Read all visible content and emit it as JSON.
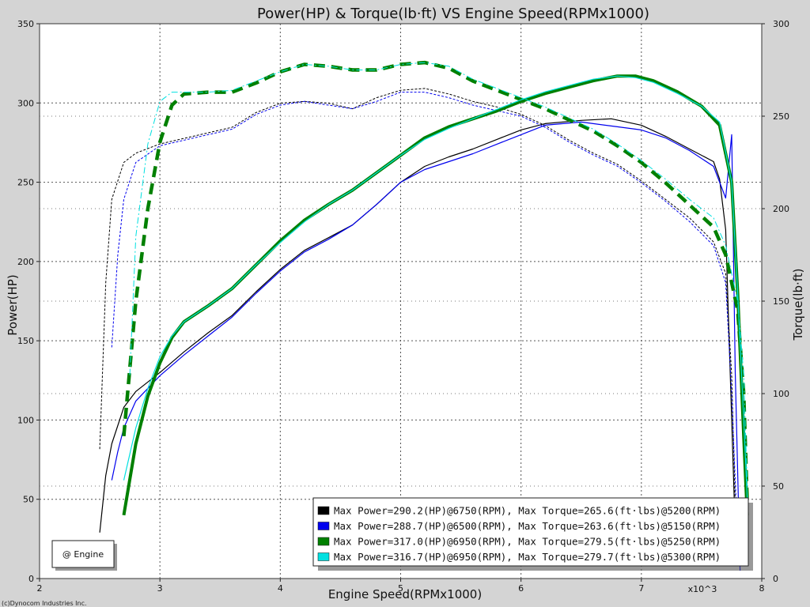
{
  "chart_data": {
    "type": "line",
    "title": "Power(HP) & Torque(lb·ft) VS Engine Speed(RPMx1000)",
    "xlabel": "Engine Speed(RPMx1000)",
    "ylabel_left": "Power(HP)",
    "ylabel_right": "Torque(lb·ft)",
    "x_multiplier_label": "x10^3",
    "xlim": [
      2,
      8
    ],
    "ylim_left": [
      0,
      350
    ],
    "ylim_right": [
      0,
      300
    ],
    "x_ticks": [
      2,
      3,
      4,
      5,
      6,
      7,
      8
    ],
    "y_ticks_left": [
      0,
      50,
      100,
      150,
      200,
      250,
      300,
      350
    ],
    "y_ticks_right": [
      0,
      50,
      100,
      150,
      200,
      250,
      300
    ],
    "grid": true,
    "legend_position": "bottom-right",
    "series": [
      {
        "color": "#000000",
        "legend": "Max Power=290.2(HP)@6750(RPM), Max Torque=265.6(ft·lbs)@5200(RPM)",
        "power": [
          [
            2.5,
            29
          ],
          [
            2.55,
            65
          ],
          [
            2.6,
            85
          ],
          [
            2.7,
            108
          ],
          [
            2.8,
            118
          ],
          [
            3,
            130
          ],
          [
            3.2,
            143
          ],
          [
            3.4,
            155
          ],
          [
            3.6,
            166
          ],
          [
            3.8,
            181
          ],
          [
            4,
            195
          ],
          [
            4.2,
            207
          ],
          [
            4.4,
            215
          ],
          [
            4.6,
            223
          ],
          [
            4.8,
            236
          ],
          [
            5,
            250
          ],
          [
            5.2,
            260
          ],
          [
            5.4,
            266
          ],
          [
            5.6,
            271
          ],
          [
            5.8,
            277
          ],
          [
            6,
            283
          ],
          [
            6.2,
            287
          ],
          [
            6.5,
            289
          ],
          [
            6.75,
            290
          ],
          [
            7,
            286
          ],
          [
            7.2,
            279
          ],
          [
            7.4,
            271
          ],
          [
            7.6,
            263
          ],
          [
            7.65,
            252
          ],
          [
            7.7,
            220
          ],
          [
            7.75,
            100
          ],
          [
            7.78,
            30
          ]
        ],
        "torque": [
          [
            2.5,
            70
          ],
          [
            2.55,
            160
          ],
          [
            2.6,
            205
          ],
          [
            2.7,
            225
          ],
          [
            2.8,
            230
          ],
          [
            3,
            235
          ],
          [
            3.2,
            238
          ],
          [
            3.4,
            241
          ],
          [
            3.6,
            244
          ],
          [
            3.8,
            252
          ],
          [
            4,
            257
          ],
          [
            4.2,
            258
          ],
          [
            4.4,
            257
          ],
          [
            4.6,
            254
          ],
          [
            4.8,
            260
          ],
          [
            5,
            264
          ],
          [
            5.2,
            265
          ],
          [
            5.4,
            262
          ],
          [
            5.6,
            258
          ],
          [
            5.8,
            255
          ],
          [
            6,
            251
          ],
          [
            6.2,
            245
          ],
          [
            6.4,
            237
          ],
          [
            6.6,
            230
          ],
          [
            6.8,
            224
          ],
          [
            7,
            215
          ],
          [
            7.2,
            205
          ],
          [
            7.4,
            195
          ],
          [
            7.6,
            182
          ],
          [
            7.7,
            165
          ],
          [
            7.75,
            110
          ],
          [
            7.78,
            40
          ]
        ]
      },
      {
        "color": "#0000ee",
        "legend": "Max Power=288.7(HP)@6500(RPM), Max Torque=263.6(ft·lbs)@5150(RPM)",
        "power": [
          [
            2.6,
            62
          ],
          [
            2.65,
            80
          ],
          [
            2.7,
            95
          ],
          [
            2.8,
            112
          ],
          [
            3,
            128
          ],
          [
            3.2,
            141
          ],
          [
            3.4,
            153
          ],
          [
            3.6,
            165
          ],
          [
            3.8,
            180
          ],
          [
            4,
            194
          ],
          [
            4.2,
            206
          ],
          [
            4.4,
            214
          ],
          [
            4.6,
            223
          ],
          [
            4.8,
            236
          ],
          [
            5,
            250
          ],
          [
            5.2,
            258
          ],
          [
            5.4,
            263
          ],
          [
            5.6,
            268
          ],
          [
            5.8,
            274
          ],
          [
            6,
            280
          ],
          [
            6.2,
            286
          ],
          [
            6.5,
            288
          ],
          [
            6.8,
            285
          ],
          [
            7,
            283
          ],
          [
            7.2,
            278
          ],
          [
            7.4,
            270
          ],
          [
            7.6,
            260
          ],
          [
            7.7,
            240
          ],
          [
            7.75,
            280
          ],
          [
            7.78,
            130
          ],
          [
            7.82,
            5
          ]
        ],
        "torque": [
          [
            2.6,
            125
          ],
          [
            2.65,
            175
          ],
          [
            2.7,
            205
          ],
          [
            2.8,
            225
          ],
          [
            3,
            234
          ],
          [
            3.2,
            237
          ],
          [
            3.4,
            240
          ],
          [
            3.6,
            243
          ],
          [
            3.8,
            251
          ],
          [
            4,
            256
          ],
          [
            4.2,
            258
          ],
          [
            4.4,
            256
          ],
          [
            4.6,
            254
          ],
          [
            4.8,
            258
          ],
          [
            5,
            263
          ],
          [
            5.2,
            263
          ],
          [
            5.4,
            260
          ],
          [
            5.6,
            256
          ],
          [
            5.8,
            253
          ],
          [
            6,
            250
          ],
          [
            6.2,
            244
          ],
          [
            6.4,
            236
          ],
          [
            6.6,
            229
          ],
          [
            6.8,
            223
          ],
          [
            7,
            214
          ],
          [
            7.2,
            204
          ],
          [
            7.4,
            193
          ],
          [
            7.6,
            180
          ],
          [
            7.7,
            160
          ],
          [
            7.75,
            100
          ],
          [
            7.8,
            20
          ]
        ]
      },
      {
        "color": "#008000",
        "legend": "Max Power=317.0(HP)@6950(RPM), Max Torque=279.5(ft·lbs)@5250(RPM)",
        "power": [
          [
            2.7,
            40
          ],
          [
            2.8,
            85
          ],
          [
            2.9,
            115
          ],
          [
            3,
            136
          ],
          [
            3.1,
            152
          ],
          [
            3.2,
            162
          ],
          [
            3.4,
            172
          ],
          [
            3.6,
            183
          ],
          [
            3.8,
            198
          ],
          [
            4,
            213
          ],
          [
            4.2,
            226
          ],
          [
            4.4,
            236
          ],
          [
            4.6,
            245
          ],
          [
            4.8,
            256
          ],
          [
            5,
            267
          ],
          [
            5.2,
            278
          ],
          [
            5.4,
            285
          ],
          [
            5.6,
            290
          ],
          [
            5.8,
            295
          ],
          [
            6,
            301
          ],
          [
            6.2,
            306
          ],
          [
            6.4,
            310
          ],
          [
            6.6,
            314
          ],
          [
            6.8,
            317
          ],
          [
            6.95,
            317
          ],
          [
            7.1,
            314
          ],
          [
            7.3,
            307
          ],
          [
            7.5,
            298
          ],
          [
            7.65,
            286
          ],
          [
            7.75,
            250
          ],
          [
            7.8,
            180
          ],
          [
            7.85,
            90
          ],
          [
            7.88,
            40
          ]
        ],
        "torque": [
          [
            2.7,
            77
          ],
          [
            2.8,
            150
          ],
          [
            2.9,
            200
          ],
          [
            3,
            236
          ],
          [
            3.1,
            256
          ],
          [
            3.2,
            262
          ],
          [
            3.4,
            263
          ],
          [
            3.6,
            263
          ],
          [
            3.8,
            268
          ],
          [
            4,
            274
          ],
          [
            4.2,
            278
          ],
          [
            4.4,
            277
          ],
          [
            4.6,
            275
          ],
          [
            4.8,
            275
          ],
          [
            5,
            278
          ],
          [
            5.2,
            279
          ],
          [
            5.4,
            276
          ],
          [
            5.6,
            269
          ],
          [
            5.8,
            264
          ],
          [
            6,
            259
          ],
          [
            6.2,
            254
          ],
          [
            6.4,
            248
          ],
          [
            6.6,
            242
          ],
          [
            6.8,
            234
          ],
          [
            7,
            225
          ],
          [
            7.2,
            214
          ],
          [
            7.4,
            202
          ],
          [
            7.6,
            190
          ],
          [
            7.7,
            175
          ],
          [
            7.8,
            145
          ],
          [
            7.85,
            100
          ],
          [
            7.88,
            40
          ]
        ]
      },
      {
        "color": "#00e0e0",
        "legend": "Max Power=316.7(HP)@6950(RPM), Max Torque=279.7(ft·lbs)@5300(RPM)",
        "power": [
          [
            2.7,
            62
          ],
          [
            2.8,
            95
          ],
          [
            2.9,
            120
          ],
          [
            3,
            140
          ],
          [
            3.1,
            153
          ],
          [
            3.2,
            162
          ],
          [
            3.4,
            172
          ],
          [
            3.6,
            183
          ],
          [
            3.8,
            198
          ],
          [
            4,
            212
          ],
          [
            4.2,
            225
          ],
          [
            4.4,
            236
          ],
          [
            4.6,
            245
          ],
          [
            4.8,
            256
          ],
          [
            5,
            267
          ],
          [
            5.2,
            277
          ],
          [
            5.4,
            284
          ],
          [
            5.6,
            290
          ],
          [
            5.8,
            296
          ],
          [
            6,
            302
          ],
          [
            6.2,
            307
          ],
          [
            6.4,
            311
          ],
          [
            6.6,
            315
          ],
          [
            6.8,
            317
          ],
          [
            6.95,
            316
          ],
          [
            7.1,
            313
          ],
          [
            7.3,
            306
          ],
          [
            7.5,
            298
          ],
          [
            7.65,
            288
          ],
          [
            7.75,
            250
          ],
          [
            7.8,
            180
          ],
          [
            7.85,
            100
          ],
          [
            7.88,
            50
          ]
        ],
        "torque": [
          [
            2.75,
            110
          ],
          [
            2.8,
            185
          ],
          [
            2.9,
            235
          ],
          [
            3,
            258
          ],
          [
            3.1,
            263
          ],
          [
            3.2,
            263
          ],
          [
            3.4,
            263
          ],
          [
            3.6,
            264
          ],
          [
            3.8,
            269
          ],
          [
            4,
            274
          ],
          [
            4.2,
            278
          ],
          [
            4.4,
            277
          ],
          [
            4.6,
            275
          ],
          [
            4.8,
            275
          ],
          [
            5,
            278
          ],
          [
            5.2,
            279
          ],
          [
            5.4,
            277
          ],
          [
            5.6,
            270
          ],
          [
            5.8,
            265
          ],
          [
            6,
            260
          ],
          [
            6.2,
            255
          ],
          [
            6.4,
            249
          ],
          [
            6.6,
            243
          ],
          [
            6.8,
            235
          ],
          [
            7,
            226
          ],
          [
            7.2,
            216
          ],
          [
            7.4,
            205
          ],
          [
            7.6,
            195
          ],
          [
            7.7,
            180
          ],
          [
            7.8,
            150
          ],
          [
            7.85,
            110
          ],
          [
            7.88,
            50
          ]
        ]
      }
    ]
  },
  "engine_box_label": "@ Engine",
  "footer": "(c)Dynocom Industries Inc."
}
